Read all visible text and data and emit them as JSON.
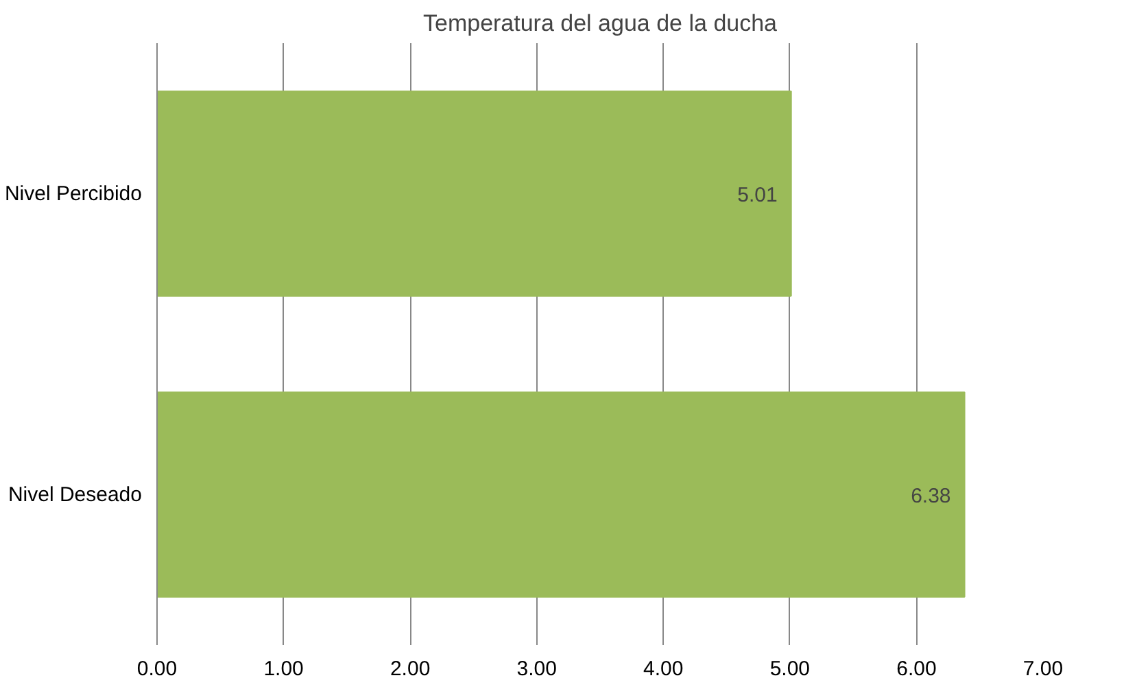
{
  "chart_data": {
    "type": "bar",
    "orientation": "horizontal",
    "title": "Temperatura del agua de la ducha",
    "categories": [
      "Nivel Percibido",
      "Nivel Deseado"
    ],
    "values": [
      5.01,
      6.38
    ],
    "color": "#9bbb59",
    "data_labels": true,
    "xlim": [
      0,
      7
    ],
    "xticks": [
      {
        "value": 0,
        "label": "0.00"
      },
      {
        "value": 1,
        "label": "1.00"
      },
      {
        "value": 2,
        "label": "2.00"
      },
      {
        "value": 3,
        "label": "3.00"
      },
      {
        "value": 4,
        "label": "4.00"
      },
      {
        "value": 5,
        "label": "5.00"
      },
      {
        "value": 6,
        "label": "6.00"
      },
      {
        "value": 7,
        "label": "7.00"
      }
    ],
    "grid": "x"
  }
}
